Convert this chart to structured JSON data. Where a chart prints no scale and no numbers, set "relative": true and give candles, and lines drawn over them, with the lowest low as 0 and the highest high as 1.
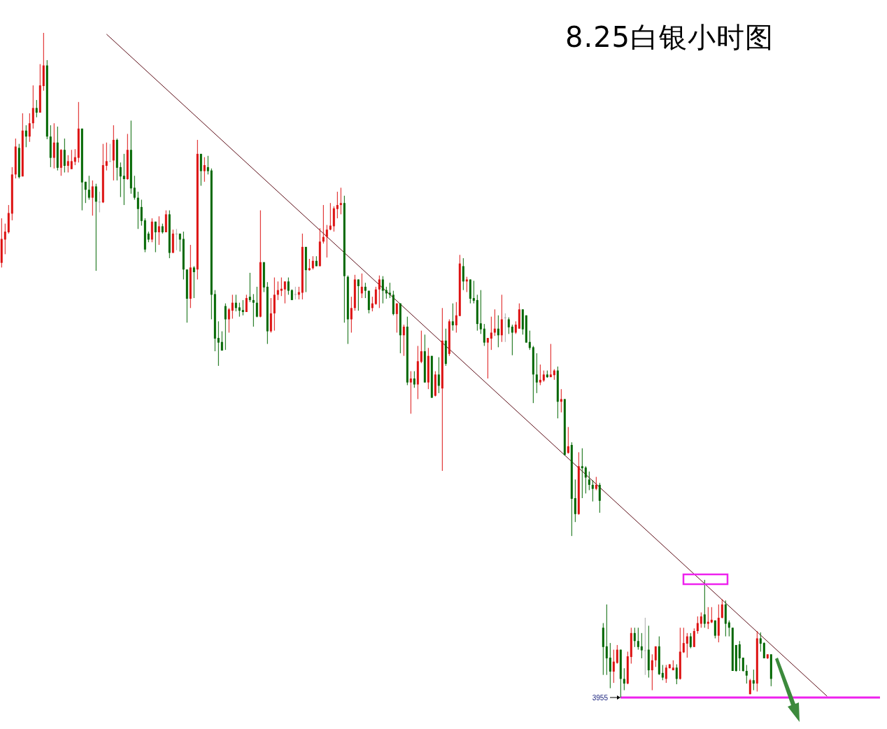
{
  "chart_data": {
    "type": "candlestick",
    "title": "8.25白银小时图",
    "relative": true,
    "categories": [
      null,
      null,
      null,
      null,
      null,
      null,
      null,
      null,
      null,
      null,
      null,
      null,
      null,
      null,
      null,
      null,
      null,
      null,
      null,
      null,
      null,
      null,
      null,
      null,
      null,
      null,
      null,
      null,
      null,
      null,
      null,
      null,
      null,
      null,
      null,
      null,
      null,
      null,
      null,
      null,
      null,
      null,
      null,
      null,
      null,
      null,
      null,
      null,
      null,
      null,
      null,
      null,
      null,
      null,
      null,
      null,
      null,
      null,
      null,
      null,
      null,
      null,
      null,
      null,
      null,
      null,
      null,
      null,
      null,
      null,
      null,
      null,
      null,
      null,
      null,
      null,
      null,
      null,
      null,
      null,
      null,
      null,
      null,
      null,
      null,
      null,
      null,
      null,
      null,
      null,
      null,
      null,
      null,
      null,
      null,
      null,
      null,
      null,
      null,
      null,
      null,
      null,
      null,
      null,
      null,
      null,
      null,
      null,
      null,
      null,
      null,
      null,
      null,
      null,
      null,
      null,
      null,
      null,
      null,
      null,
      null,
      null,
      null,
      null,
      null,
      null,
      null,
      null,
      null,
      null,
      null,
      null,
      null,
      null,
      null,
      null,
      null,
      null,
      null,
      null,
      null,
      null,
      null,
      null,
      null,
      null,
      null,
      null,
      null,
      null,
      null,
      null,
      null,
      null,
      null,
      null,
      null,
      null,
      null,
      null,
      null,
      null,
      null,
      null,
      null,
      null,
      null,
      null,
      null,
      null,
      null,
      null,
      null,
      null,
      null,
      null,
      null,
      null,
      null,
      null,
      null,
      null,
      null,
      null,
      null,
      null,
      null,
      null,
      null,
      null,
      null,
      null,
      null,
      null,
      null,
      null,
      null,
      null,
      null,
      null,
      null,
      null,
      null,
      null,
      null,
      null,
      null,
      null,
      null,
      null,
      null,
      null,
      null,
      null,
      null,
      null,
      null,
      null,
      null,
      null,
      null,
      null,
      null,
      null,
      null,
      null,
      null,
      null,
      null,
      null,
      null,
      null,
      null,
      null,
      null,
      null,
      null
    ],
    "ohlc": [
      [
        0.654,
        0.721,
        0.647,
        0.69
      ],
      [
        0.689,
        0.713,
        0.667,
        0.701
      ],
      [
        0.7,
        0.741,
        0.698,
        0.729
      ],
      [
        0.728,
        0.798,
        0.718,
        0.787
      ],
      [
        0.787,
        0.841,
        0.781,
        0.829
      ],
      [
        0.827,
        0.833,
        0.781,
        0.783
      ],
      [
        0.784,
        0.879,
        0.784,
        0.853
      ],
      [
        0.853,
        0.861,
        0.828,
        0.844
      ],
      [
        0.844,
        0.879,
        0.836,
        0.864
      ],
      [
        0.864,
        0.921,
        0.856,
        0.887
      ],
      [
        0.887,
        0.899,
        0.873,
        0.88
      ],
      [
        0.88,
        0.953,
        0.88,
        0.921
      ],
      [
        0.92,
        1,
        0.913,
        0.951
      ],
      [
        0.951,
        0.959,
        0.84,
        0.844
      ],
      [
        0.844,
        0.861,
        0.798,
        0.812
      ],
      [
        0.812,
        0.864,
        0.796,
        0.835
      ],
      [
        0.835,
        0.859,
        0.793,
        0.797
      ],
      [
        0.797,
        0.825,
        0.785,
        0.824
      ],
      [
        0.824,
        0.841,
        0.79,
        0.8
      ],
      [
        0.8,
        0.816,
        0.79,
        0.807
      ],
      [
        0.795,
        0.824,
        0.795,
        0.807
      ],
      [
        0.806,
        0.825,
        0.801,
        0.813
      ],
      [
        0.812,
        0.896,
        0.805,
        0.856
      ],
      [
        0.856,
        0.856,
        0.733,
        0.775
      ],
      [
        0.776,
        0.776,
        0.744,
        0.764
      ],
      [
        0.764,
        0.785,
        0.749,
        0.752
      ],
      [
        0.752,
        0.778,
        0.725,
        0.769
      ],
      [
        0.769,
        0.773,
        0.642,
        0.746
      ],
      [
        0.746,
        0.761,
        0.73,
        0.746
      ],
      [
        0.745,
        0.833,
        0.744,
        0.801
      ],
      [
        0.8,
        0.835,
        0.793,
        0.807
      ],
      [
        0.807,
        0.833,
        0.806,
        0.807
      ],
      [
        0.808,
        0.861,
        0.778,
        0.839
      ],
      [
        0.839,
        0.841,
        0.778,
        0.797
      ],
      [
        0.798,
        0.805,
        0.753,
        0.784
      ],
      [
        0.785,
        0.818,
        0.741,
        0.78
      ],
      [
        0.78,
        0.848,
        0.779,
        0.824
      ],
      [
        0.824,
        0.868,
        0.758,
        0.766
      ],
      [
        0.767,
        0.785,
        0.749,
        0.752
      ],
      [
        0.752,
        0.761,
        0.705,
        0.735
      ],
      [
        0.738,
        0.749,
        0.71,
        0.717
      ],
      [
        0.718,
        0.721,
        0.67,
        0.674
      ],
      [
        0.698,
        0.701,
        0.685,
        0.689
      ],
      [
        0.689,
        0.721,
        0.685,
        0.716
      ],
      [
        0.716,
        0.716,
        0.67,
        0.7
      ],
      [
        0.7,
        0.724,
        0.681,
        0.709
      ],
      [
        0.709,
        0.713,
        0.698,
        0.7
      ],
      [
        0.7,
        0.733,
        0.7,
        0.727
      ],
      [
        0.727,
        0.733,
        0.661,
        0.669
      ],
      [
        0.669,
        0.704,
        0.669,
        0.698
      ],
      [
        0.698,
        0.705,
        0.673,
        0.698
      ],
      [
        0.698,
        0.698,
        0.671,
        0.689
      ],
      [
        0.69,
        0.701,
        0.629,
        0.644
      ],
      [
        0.644,
        0.644,
        0.564,
        0.6
      ],
      [
        0.6,
        0.681,
        0.586,
        0.647
      ],
      [
        0.647,
        0.649,
        0.601,
        0.64
      ],
      [
        0.644,
        0.839,
        0.629,
        0.818
      ],
      [
        0.818,
        0.818,
        0.77,
        0.792
      ],
      [
        0.792,
        0.813,
        0.776,
        0.801
      ],
      [
        0.798,
        0.815,
        0.787,
        0.792
      ],
      [
        0.793,
        0.796,
        0.569,
        0.606
      ],
      [
        0.607,
        0.613,
        0.521,
        0.54
      ],
      [
        0.541,
        0.566,
        0.499,
        0.534
      ],
      [
        0.535,
        0.551,
        0.522,
        0.522
      ],
      [
        0.589,
        0.593,
        0.523,
        0.569
      ],
      [
        0.569,
        0.586,
        0.549,
        0.584
      ],
      [
        0.582,
        0.606,
        0.57,
        0.594
      ],
      [
        0.594,
        0.606,
        0.581,
        0.586
      ],
      [
        0.587,
        0.594,
        0.573,
        0.582
      ],
      [
        0.583,
        0.598,
        0.575,
        0.58
      ],
      [
        0.58,
        0.606,
        0.58,
        0.601
      ],
      [
        0.603,
        0.639,
        0.595,
        0.598
      ],
      [
        0.598,
        0.607,
        0.558,
        0.594
      ],
      [
        0.594,
        0.618,
        0.572,
        0.573
      ],
      [
        0.573,
        0.733,
        0.572,
        0.655
      ],
      [
        0.655,
        0.655,
        0.61,
        0.617
      ],
      [
        0.618,
        0.625,
        0.532,
        0.551
      ],
      [
        0.551,
        0.601,
        0.549,
        0.578
      ],
      [
        0.578,
        0.632,
        0.552,
        0.606
      ],
      [
        0.606,
        0.626,
        0.598,
        0.613
      ],
      [
        0.612,
        0.632,
        0.604,
        0.615
      ],
      [
        0.614,
        0.626,
        0.593,
        0.626
      ],
      [
        0.626,
        0.632,
        0.606,
        0.612
      ],
      [
        0.613,
        0.614,
        0.598,
        0.598
      ],
      [
        0.607,
        0.618,
        0.599,
        0.607
      ],
      [
        0.606,
        0.618,
        0.599,
        0.61
      ],
      [
        0.609,
        0.698,
        0.599,
        0.678
      ],
      [
        0.678,
        0.678,
        0.61,
        0.643
      ],
      [
        0.643,
        0.66,
        0.642,
        0.646
      ],
      [
        0.646,
        0.664,
        0.644,
        0.657
      ],
      [
        0.657,
        0.664,
        0.649,
        0.649
      ],
      [
        0.649,
        0.706,
        0.649,
        0.686
      ],
      [
        0.686,
        0.741,
        0.683,
        0.693
      ],
      [
        0.693,
        0.711,
        0.662,
        0.704
      ],
      [
        0.704,
        0.744,
        0.703,
        0.71
      ],
      [
        0.709,
        0.739,
        0.701,
        0.736
      ],
      [
        0.735,
        0.761,
        0.721,
        0.741
      ],
      [
        0.741,
        0.767,
        0.727,
        0.744
      ],
      [
        0.744,
        0.755,
        0.564,
        0.634
      ],
      [
        0.633,
        0.635,
        0.532,
        0.569
      ],
      [
        0.569,
        0.603,
        0.549,
        0.586
      ],
      [
        0.586,
        0.636,
        0.582,
        0.629
      ],
      [
        0.629,
        0.629,
        0.582,
        0.619
      ],
      [
        0.608,
        0.638,
        0.601,
        0.618
      ],
      [
        0.618,
        0.624,
        0.601,
        0.612
      ],
      [
        0.612,
        0.612,
        0.578,
        0.583
      ],
      [
        0.586,
        0.603,
        0.581,
        0.593
      ],
      [
        0.592,
        0.618,
        0.591,
        0.614
      ],
      [
        0.614,
        0.635,
        0.586,
        0.629
      ],
      [
        0.629,
        0.634,
        0.593,
        0.612
      ],
      [
        0.613,
        0.618,
        0.6,
        0.608
      ],
      [
        0.609,
        0.624,
        0.601,
        0.606
      ],
      [
        0.606,
        0.612,
        0.575,
        0.577
      ],
      [
        0.577,
        0.593,
        0.549,
        0.593
      ],
      [
        0.593,
        0.593,
        0.518,
        0.545
      ],
      [
        0.545,
        0.561,
        0.514,
        0.558
      ],
      [
        0.558,
        0.573,
        0.47,
        0.474
      ],
      [
        0.474,
        0.491,
        0.427,
        0.48
      ],
      [
        0.48,
        0.491,
        0.466,
        0.471
      ],
      [
        0.471,
        0.529,
        0.449,
        0.506
      ],
      [
        0.505,
        0.552,
        0.503,
        0.521
      ],
      [
        0.521,
        0.546,
        0.474,
        0.474
      ],
      [
        0.474,
        0.526,
        0.464,
        0.514
      ],
      [
        0.514,
        0.514,
        0.451,
        0.451
      ],
      [
        0.454,
        0.491,
        0.453,
        0.486
      ],
      [
        0.486,
        0.512,
        0.458,
        0.469
      ],
      [
        0.465,
        0.586,
        0.341,
        0.537
      ],
      [
        0.537,
        0.555,
        0.499,
        0.502
      ],
      [
        0.517,
        0.569,
        0.514,
        0.566
      ],
      [
        0.566,
        0.593,
        0.552,
        0.56
      ],
      [
        0.56,
        0.595,
        0.549,
        0.575
      ],
      [
        0.574,
        0.666,
        0.574,
        0.653
      ],
      [
        0.649,
        0.661,
        0.613,
        0.626
      ],
      [
        0.626,
        0.633,
        0.61,
        0.629
      ],
      [
        0.629,
        0.629,
        0.593,
        0.6
      ],
      [
        0.601,
        0.627,
        0.593,
        0.597
      ],
      [
        0.598,
        0.606,
        0.552,
        0.562
      ],
      [
        0.563,
        0.613,
        0.547,
        0.554
      ],
      [
        0.555,
        0.562,
        0.529,
        0.534
      ],
      [
        0.534,
        0.541,
        0.48,
        0.541
      ],
      [
        0.54,
        0.573,
        0.523,
        0.549
      ],
      [
        0.549,
        0.584,
        0.544,
        0.555
      ],
      [
        0.555,
        0.575,
        0.527,
        0.545
      ],
      [
        0.545,
        0.606,
        0.535,
        0.569
      ],
      [
        0.572,
        0.578,
        0.535,
        0.572
      ],
      [
        0.569,
        0.572,
        0.547,
        0.557
      ],
      [
        0.558,
        0.561,
        0.515,
        0.549
      ],
      [
        0.549,
        0.566,
        0.547,
        0.561
      ],
      [
        0.555,
        0.593,
        0.555,
        0.584
      ],
      [
        0.584,
        0.584,
        0.546,
        0.554
      ],
      [
        0.575,
        0.575,
        0.534,
        0.534
      ],
      [
        0.535,
        0.552,
        0.523,
        0.526
      ],
      [
        0.527,
        0.529,
        0.443,
        0.486
      ],
      [
        0.486,
        0.518,
        0.458,
        0.474
      ],
      [
        0.474,
        0.501,
        0.47,
        0.478
      ],
      [
        0.477,
        0.492,
        0.475,
        0.486
      ],
      [
        0.486,
        0.492,
        0.481,
        0.482
      ],
      [
        0.482,
        0.532,
        0.482,
        0.486
      ],
      [
        0.485,
        0.494,
        0.478,
        0.492
      ],
      [
        0.492,
        0.498,
        0.42,
        0.445
      ],
      [
        0.445,
        0.464,
        0.429,
        0.449
      ],
      [
        0.449,
        0.449,
        0.364,
        0.365
      ],
      [
        0.368,
        0.407,
        0.367,
        0.378
      ],
      [
        0.38,
        0.384,
        0.243,
        0.299
      ],
      [
        0.3,
        0.328,
        0.264,
        0.276
      ],
      [
        0.276,
        0.369,
        0.275,
        0.348
      ],
      [
        0.348,
        0.375,
        0.3,
        0.345
      ],
      [
        0.346,
        0.348,
        0.307,
        0.331
      ],
      [
        0.328,
        0.34,
        0.312,
        0.32
      ],
      [
        0.32,
        0.327,
        0.295,
        0.314
      ],
      [
        0.314,
        0.332,
        0.312,
        0.32
      ],
      [
        0.32,
        0.323,
        0.278,
        0.296
      ],
      [
        0.105,
        0.112,
        0.034,
        0.076
      ],
      [
        0.077,
        0.14,
        0.034,
        0.059
      ],
      [
        0.06,
        0.082,
        0.014,
        0.039
      ],
      [
        0.039,
        0.072,
        0.022,
        0.054
      ],
      [
        0.052,
        0.079,
        0.051,
        0.072
      ],
      [
        0.072,
        0.072,
        0,
        0.028
      ],
      [
        0.028,
        0.044,
        0.011,
        0.021
      ],
      [
        0.021,
        0.069,
        0.02,
        0.062
      ],
      [
        0.061,
        0.105,
        0.051,
        0.097
      ],
      [
        0.097,
        0.105,
        0.076,
        0.085
      ],
      [
        0.085,
        0.105,
        0.072,
        0.076
      ],
      [
        0.077,
        0.097,
        0.059,
        0.071
      ],
      [
        0.071,
        0.12,
        0.034,
        0.071
      ],
      [
        0.072,
        0.108,
        0.03,
        0.041
      ],
      [
        0.041,
        0.065,
        0.011,
        0.056
      ],
      [
        0.056,
        0.077,
        0.046,
        0.077
      ],
      [
        0.077,
        0.092,
        0.034,
        0.035
      ],
      [
        0.037,
        0.049,
        0.026,
        0.03
      ],
      [
        0.028,
        0.049,
        0.022,
        0.045
      ],
      [
        0.044,
        0.05,
        0.044,
        0.05
      ],
      [
        0.041,
        0.056,
        0.041,
        0.045
      ],
      [
        0.045,
        0.05,
        0.02,
        0.028
      ],
      [
        0.028,
        0.105,
        0.027,
        0.069
      ],
      [
        0.068,
        0.105,
        0.067,
        0.082
      ],
      [
        0.081,
        0.097,
        0.06,
        0.092
      ],
      [
        0.092,
        0.097,
        0.074,
        0.076
      ],
      [
        0.076,
        0.104,
        0.076,
        0.1
      ],
      [
        0.1,
        0.122,
        0.096,
        0.112
      ],
      [
        0.111,
        0.128,
        0.105,
        0.122
      ],
      [
        0.125,
        0.177,
        0.105,
        0.111
      ],
      [
        0.111,
        0.136,
        0.103,
        0.114
      ],
      [
        0.113,
        0.136,
        0.112,
        0.117
      ],
      [
        0.116,
        0.116,
        0.089,
        0.093
      ],
      [
        0.093,
        0.14,
        0.083,
        0.12
      ],
      [
        0.12,
        0.148,
        0.119,
        0.14
      ],
      [
        0.14,
        0.146,
        0.092,
        0.111
      ],
      [
        0.113,
        0.116,
        0.092,
        0.105
      ],
      [
        0.105,
        0.105,
        0.04,
        0.04
      ],
      [
        0.079,
        0.079,
        0.039,
        0.04
      ],
      [
        0.08,
        0.085,
        0.04,
        0.059
      ],
      [
        0.06,
        0.06,
        0.039,
        0.04
      ],
      [
        0.04,
        0.049,
        0.021,
        0.033
      ],
      [
        0.005,
        0.028,
        0.005,
        0.026
      ],
      [
        0.026,
        0.042,
        0.011,
        0.021
      ],
      [
        0.021,
        0.1,
        0.009,
        0.089
      ],
      [
        0.089,
        0.098,
        0.069,
        0.081
      ],
      [
        0.082,
        0.083,
        0.059,
        0.059
      ],
      [
        0.059,
        0.065,
        0.058,
        0.065
      ],
      [
        0.065,
        0.065,
        0.017,
        0.028
      ],
      null,
      null,
      null,
      null,
      null,
      null,
      null,
      null,
      null,
      null,
      null,
      null,
      null,
      null,
      null,
      null
    ],
    "colors": [
      "#dd1111",
      "#dd1111",
      "#dd1111",
      "#dd1111",
      "#dd1111",
      "#006600",
      "#dd1111",
      "#006600",
      "#dd1111",
      "#dd1111",
      "#006600",
      "#dd1111",
      "#dd1111",
      "#006600",
      "#006600",
      "#dd1111",
      "#006600",
      "#dd1111",
      "#006600",
      "#dd1111",
      "#dd1111",
      "#dd1111",
      "#dd1111",
      "#006600",
      "#006600",
      "#006600",
      "#dd1111",
      "#006600",
      "#aaaaaa",
      "#dd1111",
      "#dd1111",
      "#aaaaaa",
      "#dd1111",
      "#006600",
      "#006600",
      "#006600",
      "#dd1111",
      "#006600",
      "#006600",
      "#006600",
      "#006600",
      "#006600",
      "#006600",
      "#dd1111",
      "#006600",
      "#dd1111",
      "#006600",
      "#dd1111",
      "#006600",
      "#dd1111",
      "#aaaaaa",
      "#006600",
      "#006600",
      "#006600",
      "#dd1111",
      "#006600",
      "#dd1111",
      "#006600",
      "#dd1111",
      "#006600",
      "#006600",
      "#006600",
      "#006600",
      "#006600",
      "#006600",
      "#dd1111",
      "#dd1111",
      "#006600",
      "#006600",
      "#006600",
      "#dd1111",
      "#006600",
      "#006600",
      "#006600",
      "#dd1111",
      "#006600",
      "#006600",
      "#dd1111",
      "#dd1111",
      "#dd1111",
      "#dd1111",
      "#dd1111",
      "#006600",
      "#006600",
      "#aaaaaa",
      "#dd1111",
      "#dd1111",
      "#006600",
      "#dd1111",
      "#dd1111",
      "#006600",
      "#dd1111",
      "#dd1111",
      "#dd1111",
      "#dd1111",
      "#dd1111",
      "#dd1111",
      "#dd1111",
      "#006600",
      "#006600",
      "#dd1111",
      "#dd1111",
      "#006600",
      "#dd1111",
      "#006600",
      "#006600",
      "#dd1111",
      "#dd1111",
      "#dd1111",
      "#006600",
      "#006600",
      "#006600",
      "#006600",
      "#dd1111",
      "#006600",
      "#dd1111",
      "#006600",
      "#dd1111",
      "#006600",
      "#dd1111",
      "#dd1111",
      "#006600",
      "#dd1111",
      "#006600",
      "#dd1111",
      "#006600",
      "#dd1111",
      "#006600",
      "#dd1111",
      "#006600",
      "#dd1111",
      "#dd1111",
      "#006600",
      "#dd1111",
      "#006600",
      "#006600",
      "#006600",
      "#006600",
      "#006600",
      "#dd1111",
      "#dd1111",
      "#dd1111",
      "#006600",
      "#dd1111",
      "#aaaaaa",
      "#006600",
      "#006600",
      "#dd1111",
      "#dd1111",
      "#006600",
      "#006600",
      "#006600",
      "#006600",
      "#006600",
      "#dd1111",
      "#dd1111",
      "#006600",
      "#dd1111",
      "#dd1111",
      "#006600",
      "#dd1111",
      "#006600",
      "#dd1111",
      "#006600",
      "#006600",
      "#dd1111",
      "#006600",
      "#006600",
      "#006600",
      "#006600",
      "#dd1111",
      "#006600",
      "#006600",
      "#006600",
      "#006600",
      "#dd1111",
      "#dd1111",
      "#006600",
      "#006600",
      "#dd1111",
      "#dd1111",
      "#006600",
      "#006600",
      "#006600",
      "#aaaaaa",
      "#006600",
      "#dd1111",
      "#dd1111",
      "#006600",
      "#006600",
      "#dd1111",
      "#dd1111",
      "#dd1111",
      "#006600",
      "#dd1111",
      "#dd1111",
      "#dd1111",
      "#006600",
      "#dd1111",
      "#dd1111",
      "#dd1111",
      "#006600",
      "#dd1111",
      "#dd1111",
      "#006600",
      "#dd1111",
      "#dd1111",
      "#006600",
      "#006600",
      "#006600",
      "#006600",
      "#006600",
      "#006600",
      "#006600",
      "#dd1111",
      "#006600",
      "#dd1111",
      "#006600",
      "#006600",
      "#dd1111",
      "#006600",
      null,
      null,
      null,
      null,
      null,
      null,
      null,
      null,
      null,
      null,
      null,
      null,
      null,
      null,
      null,
      null
    ],
    "series": [
      {
        "type": "line",
        "values": [
          null,
          null,
          null,
          null,
          null,
          null,
          null,
          null,
          null,
          null,
          null,
          null,
          null,
          null,
          null,
          null,
          null,
          null,
          null,
          null,
          null,
          null,
          null,
          null,
          null,
          null,
          null,
          null,
          null,
          null,
          0.998,
          null,
          null,
          null,
          null,
          null,
          null,
          null,
          null,
          null,
          null,
          null,
          null,
          null,
          null,
          null,
          null,
          null,
          null,
          null,
          null,
          null,
          null,
          null,
          null,
          null,
          null,
          null,
          null,
          null,
          null,
          null,
          null,
          null,
          null,
          null,
          null,
          null,
          null,
          null,
          null,
          null,
          null,
          null,
          null,
          null,
          null,
          null,
          null,
          null,
          null,
          null,
          null,
          null,
          null,
          null,
          null,
          null,
          null,
          null,
          null,
          null,
          null,
          null,
          null,
          null,
          null,
          null,
          null,
          null,
          null,
          null,
          null,
          null,
          null,
          null,
          null,
          null,
          null,
          null,
          null,
          null,
          null,
          null,
          null,
          null,
          null,
          null,
          null,
          null,
          null,
          null,
          null,
          null,
          null,
          null,
          null,
          null,
          null,
          null,
          null,
          null,
          null,
          null,
          null,
          null,
          null,
          null,
          null,
          null,
          null,
          null,
          null,
          null,
          null,
          null,
          null,
          null,
          null,
          null,
          null,
          null,
          null,
          null,
          null,
          null,
          null,
          null,
          null,
          null,
          null,
          null,
          null,
          null,
          null,
          null,
          null,
          null,
          null,
          null,
          null,
          null,
          null,
          null,
          null,
          null,
          null,
          null,
          null,
          null,
          null,
          null,
          null,
          null,
          null,
          null,
          null,
          null,
          null,
          null,
          null,
          null,
          null,
          null,
          null,
          null,
          null,
          null,
          null,
          null,
          null,
          null,
          null,
          null,
          null,
          null,
          null,
          null,
          null,
          null,
          null,
          null,
          null,
          null,
          null,
          null,
          null,
          null,
          null,
          null,
          null,
          null,
          null,
          null,
          null,
          null,
          null,
          null,
          null,
          null,
          null,
          null,
          null,
          null,
          null,
          null,
          0.002
        ],
        "color": "#5a0a14"
      }
    ],
    "ref_lines": [
      {
        "axis": "y",
        "value": 0,
        "color": "#ee22ee"
      }
    ],
    "annotations": [
      "3955"
    ]
  }
}
